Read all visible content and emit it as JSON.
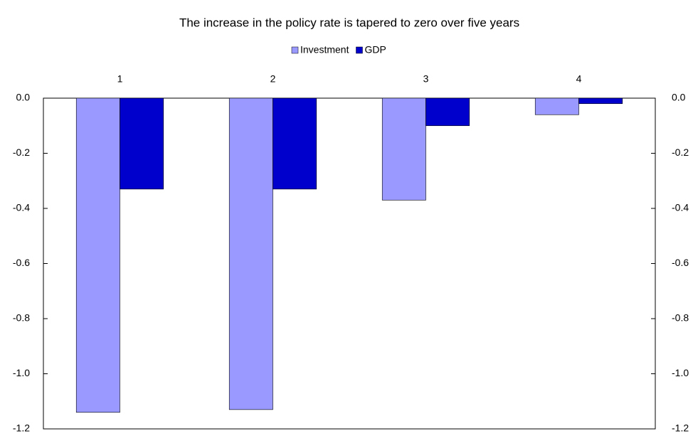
{
  "chart_data": {
    "type": "bar",
    "title": "The increase in the policy rate is tapered to zero over five years",
    "categories": [
      "1",
      "2",
      "3",
      "4"
    ],
    "series": [
      {
        "name": "Investment",
        "color": "#9999ff",
        "values": [
          -1.14,
          -1.13,
          -0.37,
          -0.06
        ]
      },
      {
        "name": "GDP",
        "color": "#0000cc",
        "values": [
          -0.33,
          -0.33,
          -0.1,
          -0.02
        ]
      }
    ],
    "ylim": [
      -1.2,
      0
    ],
    "yticks": [
      {
        "value": 0,
        "label": "0.0"
      },
      {
        "value": -0.2,
        "label": "-0.2"
      },
      {
        "value": -0.4,
        "label": "-0.4"
      },
      {
        "value": -0.6,
        "label": "-0.6"
      },
      {
        "value": -0.8,
        "label": "-0.8"
      },
      {
        "value": -1.0,
        "label": "-1.0"
      },
      {
        "value": -1.2,
        "label": "-1.2"
      }
    ],
    "y2lim": [
      -1.2,
      0
    ],
    "y2ticks": [
      {
        "value": 0,
        "label": "0.0"
      },
      {
        "value": -0.2,
        "label": "-0.2"
      },
      {
        "value": -0.4,
        "label": "-0.4"
      },
      {
        "value": -0.6,
        "label": "-0.6"
      },
      {
        "value": -0.8,
        "label": "-0.8"
      },
      {
        "value": -1.0,
        "label": "-1.0"
      },
      {
        "value": -1.2,
        "label": "-1.2"
      }
    ],
    "legend": "top",
    "grid": false
  }
}
